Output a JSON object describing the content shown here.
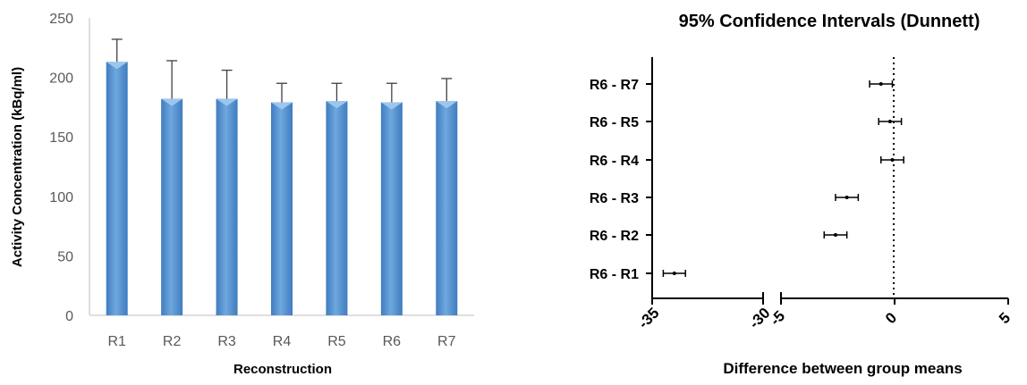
{
  "chart_data": [
    {
      "type": "bar",
      "title": "",
      "xlabel": "Reconstruction",
      "ylabel": "Activity Concentration (kBq/ml)",
      "categories": [
        "R1",
        "R2",
        "R3",
        "R4",
        "R5",
        "R6",
        "R7"
      ],
      "values": [
        213,
        182,
        182,
        179,
        180,
        179,
        180
      ],
      "error_upper": [
        232,
        214,
        206,
        195,
        195,
        195,
        199
      ],
      "ylim": [
        0,
        250
      ],
      "yticks": [
        "0",
        "50",
        "100",
        "150",
        "200",
        "250"
      ],
      "grid": false,
      "legend": "none",
      "bar_color": "#5b9bd5",
      "bar_dark": "#3f7cc0"
    },
    {
      "type": "scatter",
      "title": "95% Confidence Intervals (Dunnett)",
      "xlabel": "Difference between group means",
      "ylabel": "",
      "categories": [
        "R6 - R7",
        "R6 - R5",
        "R6 - R4",
        "R6 - R3",
        "R6 - R2",
        "R6 - R1"
      ],
      "means": [
        -0.6,
        -0.2,
        -0.1,
        -2.1,
        -2.6,
        -34.0
      ],
      "ci_low": [
        -1.1,
        -0.7,
        -0.6,
        -2.6,
        -3.1,
        -34.5
      ],
      "ci_high": [
        -0.1,
        0.3,
        0.4,
        -1.6,
        -2.1,
        -33.5
      ],
      "axis_break": [
        -30,
        -5
      ],
      "xticks": [
        "-35",
        "-30",
        "-5",
        "0",
        "5"
      ],
      "zero_line": "dotted",
      "grid": false,
      "legend": "none"
    }
  ]
}
